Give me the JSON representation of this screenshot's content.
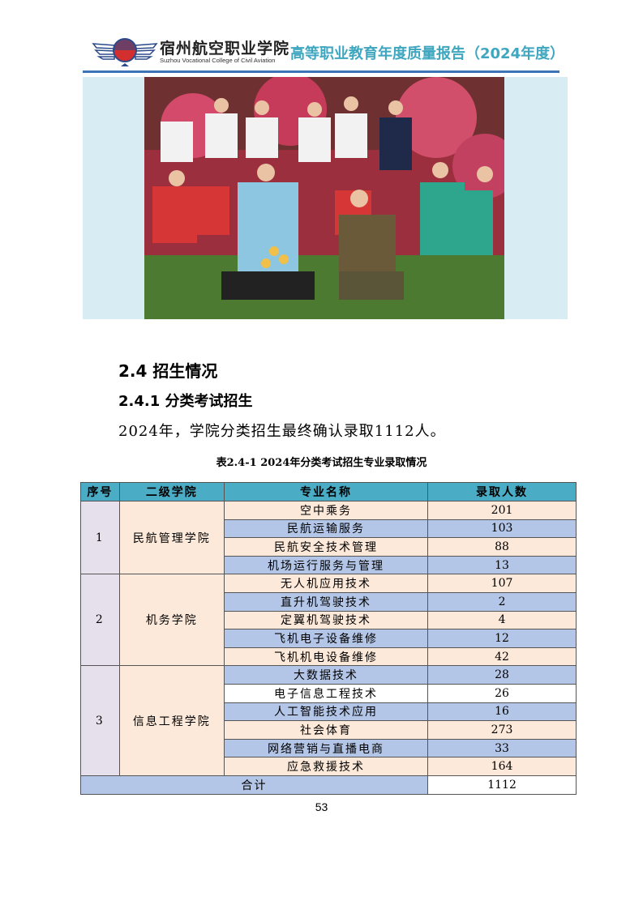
{
  "header": {
    "school_cn": "宿州航空职业学院",
    "school_en": "Suzhou Vocational College of Civil Aviation",
    "report_title": "高等职业教育年度质量报告（2024年度）",
    "accent": "#3fa6bf",
    "rule_color": "#3d74b8"
  },
  "section": {
    "h2": "2.4  招生情况",
    "h3": "2.4.1  分类考试招生",
    "paragraph": "2024年，学院分类招生最终确认录取1112人。"
  },
  "table": {
    "caption": "表2.4-1    2024年分类考试招生专业录取情况",
    "headers": [
      "序号",
      "二级学院",
      "专业名称",
      "录取人数"
    ],
    "groups": [
      {
        "seq": "1",
        "college": "民航管理学院",
        "rows": [
          {
            "major": "空中乘务",
            "count": "201",
            "color": "peach"
          },
          {
            "major": "民航运输服务",
            "count": "103",
            "color": "blue"
          },
          {
            "major": "民航安全技术管理",
            "count": "88",
            "color": "peach"
          },
          {
            "major": "机场运行服务与管理",
            "count": "13",
            "color": "blue"
          }
        ]
      },
      {
        "seq": "2",
        "college": "机务学院",
        "rows": [
          {
            "major": "无人机应用技术",
            "count": "107",
            "color": "peach"
          },
          {
            "major": "直升机驾驶技术",
            "count": "2",
            "color": "blue"
          },
          {
            "major": "定翼机驾驶技术",
            "count": "4",
            "color": "peach"
          },
          {
            "major": "飞机电子设备维修",
            "count": "12",
            "color": "blue"
          },
          {
            "major": "飞机机电设备维修",
            "count": "42",
            "color": "peach"
          }
        ]
      },
      {
        "seq": "3",
        "college": "信息工程学院",
        "rows": [
          {
            "major": "大数据技术",
            "count": "28",
            "color": "blue"
          },
          {
            "major": "电子信息工程技术",
            "count": "26",
            "color": "white"
          },
          {
            "major": "人工智能技术应用",
            "count": "16",
            "color": "blue"
          },
          {
            "major": "社会体育",
            "count": "273",
            "color": "peach"
          },
          {
            "major": "网络营销与直播电商",
            "count": "33",
            "color": "blue"
          },
          {
            "major": "应急救援技术",
            "count": "164",
            "color": "peach"
          }
        ]
      }
    ],
    "total_label": "合计",
    "total_value": "1112"
  },
  "page_number": "53"
}
